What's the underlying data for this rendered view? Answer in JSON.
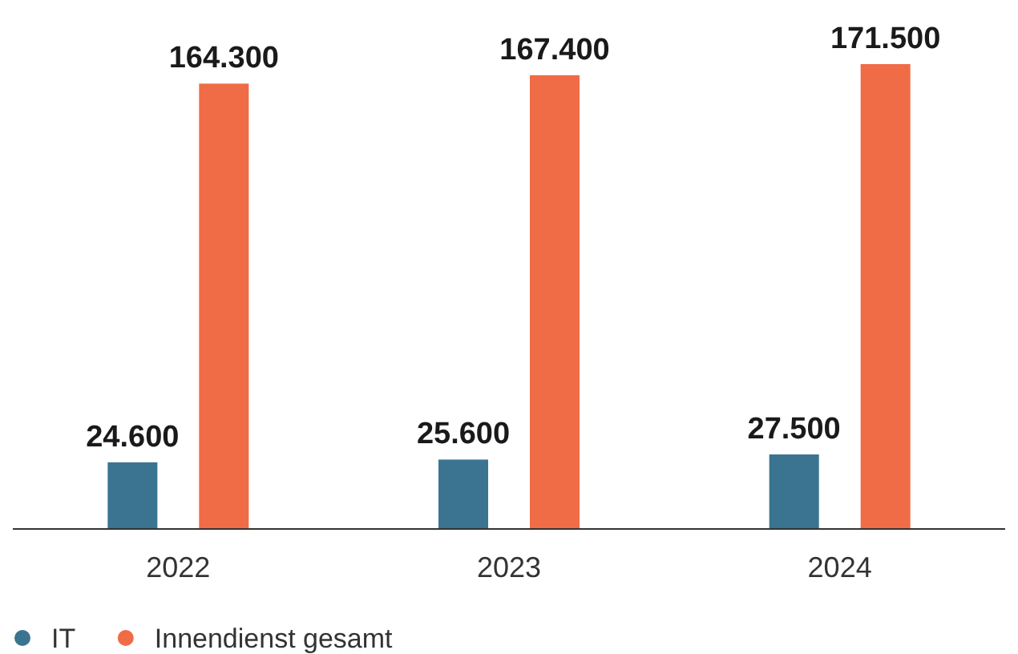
{
  "chart_data": {
    "type": "bar",
    "categories": [
      "2022",
      "2023",
      "2024"
    ],
    "series": [
      {
        "name": "IT",
        "color": "#3a7490",
        "values": [
          24600,
          25600,
          27500
        ],
        "value_labels": [
          "24.600",
          "25.600",
          "27.500"
        ]
      },
      {
        "name": "Innendienst gesamt",
        "color": "#ef6c47",
        "values": [
          164300,
          167400,
          171500
        ],
        "value_labels": [
          "164.300",
          "167.400",
          "171.500"
        ]
      }
    ],
    "legend": "bottom left",
    "grid": false
  }
}
